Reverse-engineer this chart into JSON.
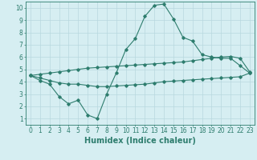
{
  "line1_x": [
    0,
    1,
    2,
    3,
    4,
    5,
    6,
    7,
    8,
    9,
    10,
    11,
    12,
    13,
    14,
    15,
    16,
    17,
    18,
    19,
    20,
    21,
    22,
    23
  ],
  "line1_y": [
    4.5,
    4.1,
    3.8,
    2.8,
    2.2,
    2.5,
    1.3,
    1.0,
    3.0,
    4.7,
    6.6,
    7.5,
    9.3,
    10.2,
    10.3,
    9.1,
    7.6,
    7.3,
    6.2,
    6.0,
    5.9,
    5.9,
    5.3,
    4.7
  ],
  "line2_x": [
    0,
    1,
    2,
    3,
    4,
    5,
    6,
    7,
    8,
    9,
    10,
    11,
    12,
    13,
    14,
    15,
    16,
    17,
    18,
    19,
    20,
    21,
    22,
    23
  ],
  "line2_y": [
    4.5,
    4.6,
    4.7,
    4.8,
    4.9,
    5.0,
    5.1,
    5.15,
    5.2,
    5.25,
    5.3,
    5.35,
    5.4,
    5.45,
    5.5,
    5.55,
    5.6,
    5.7,
    5.8,
    5.9,
    6.0,
    6.05,
    5.9,
    4.8
  ],
  "line3_x": [
    0,
    1,
    2,
    3,
    4,
    5,
    6,
    7,
    8,
    9,
    10,
    11,
    12,
    13,
    14,
    15,
    16,
    17,
    18,
    19,
    20,
    21,
    22,
    23
  ],
  "line3_y": [
    4.5,
    4.3,
    4.1,
    3.9,
    3.8,
    3.8,
    3.7,
    3.6,
    3.6,
    3.65,
    3.7,
    3.75,
    3.8,
    3.9,
    4.0,
    4.05,
    4.1,
    4.15,
    4.2,
    4.25,
    4.3,
    4.35,
    4.4,
    4.7
  ],
  "line_color": "#2e7d6e",
  "bg_color": "#d6eef2",
  "grid_color": "#b8d8df",
  "xlabel": "Humidex (Indice chaleur)",
  "xlim": [
    -0.5,
    23.5
  ],
  "ylim": [
    0.5,
    10.5
  ],
  "xticks": [
    0,
    1,
    2,
    3,
    4,
    5,
    6,
    7,
    8,
    9,
    10,
    11,
    12,
    13,
    14,
    15,
    16,
    17,
    18,
    19,
    20,
    21,
    22,
    23
  ],
  "yticks": [
    1,
    2,
    3,
    4,
    5,
    6,
    7,
    8,
    9,
    10
  ],
  "tick_fontsize": 5.5,
  "xlabel_fontsize": 7.0
}
